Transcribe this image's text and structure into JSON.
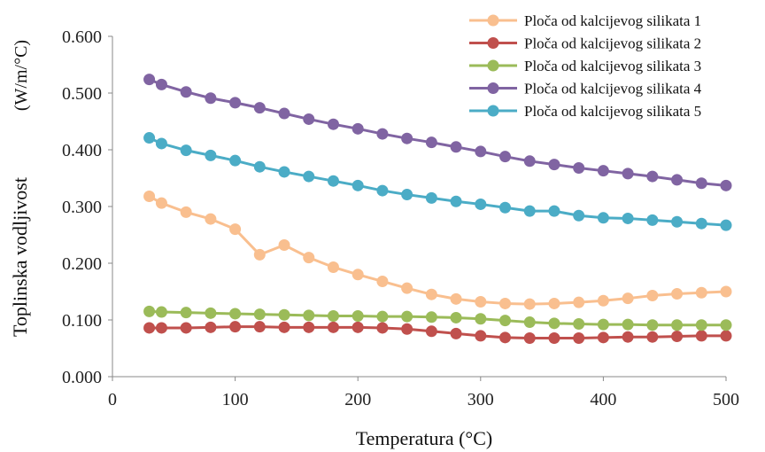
{
  "chart_data": {
    "type": "line",
    "xlabel": "Temperatura (°C)",
    "ylabel": "Toplinska vodljivost",
    "ylabel_unit": "(W/m/°C)",
    "xlim": [
      0,
      500
    ],
    "ylim": [
      0.0,
      0.6
    ],
    "xticks": [
      "0",
      "100",
      "200",
      "300",
      "400",
      "500"
    ],
    "yticks": [
      "0.000",
      "0.100",
      "0.200",
      "0.300",
      "0.400",
      "0.500",
      "0.600"
    ],
    "grid": false,
    "legend_position": "top-right",
    "x": [
      30,
      40,
      60,
      80,
      100,
      120,
      140,
      160,
      180,
      200,
      220,
      240,
      260,
      280,
      300,
      320,
      340,
      360,
      380,
      400,
      420,
      440,
      460,
      480,
      500
    ],
    "series": [
      {
        "name": "Ploča od kalcijevog silikata 1",
        "color": "#f9bf8f",
        "values": [
          0.318,
          0.306,
          0.29,
          0.278,
          0.26,
          0.215,
          0.232,
          0.21,
          0.193,
          0.18,
          0.168,
          0.156,
          0.145,
          0.137,
          0.132,
          0.129,
          0.128,
          0.129,
          0.131,
          0.134,
          0.138,
          0.143,
          0.146,
          0.148,
          0.15
        ]
      },
      {
        "name": "Ploča od kalcijevog silikata 2",
        "color": "#c0504d",
        "values": [
          0.086,
          0.086,
          0.086,
          0.087,
          0.088,
          0.088,
          0.087,
          0.087,
          0.087,
          0.087,
          0.086,
          0.084,
          0.08,
          0.076,
          0.072,
          0.069,
          0.068,
          0.068,
          0.068,
          0.069,
          0.07,
          0.07,
          0.071,
          0.072,
          0.072
        ]
      },
      {
        "name": "Ploča od kalcijevog silikata 3",
        "color": "#9bbb59",
        "values": [
          0.115,
          0.114,
          0.113,
          0.112,
          0.111,
          0.11,
          0.109,
          0.108,
          0.107,
          0.107,
          0.106,
          0.106,
          0.105,
          0.104,
          0.102,
          0.099,
          0.096,
          0.094,
          0.093,
          0.092,
          0.092,
          0.091,
          0.091,
          0.091,
          0.091
        ]
      },
      {
        "name": "Ploča od kalcijevog silikata 4",
        "color": "#8064a2",
        "values": [
          0.524,
          0.515,
          0.502,
          0.491,
          0.483,
          0.474,
          0.464,
          0.454,
          0.445,
          0.437,
          0.428,
          0.42,
          0.413,
          0.405,
          0.397,
          0.388,
          0.38,
          0.374,
          0.368,
          0.363,
          0.358,
          0.353,
          0.347,
          0.341,
          0.337
        ]
      },
      {
        "name": "Ploča od kalcijevog silikata 5",
        "color": "#4bacc6",
        "values": [
          0.421,
          0.411,
          0.399,
          0.39,
          0.381,
          0.37,
          0.361,
          0.353,
          0.345,
          0.337,
          0.328,
          0.321,
          0.315,
          0.309,
          0.304,
          0.298,
          0.292,
          0.292,
          0.284,
          0.28,
          0.279,
          0.276,
          0.273,
          0.27,
          0.267
        ]
      }
    ]
  }
}
